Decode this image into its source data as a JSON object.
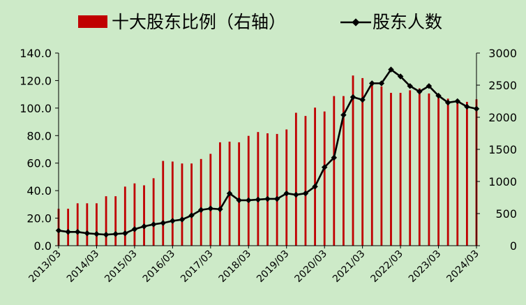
{
  "chart_data": {
    "type": "bar",
    "legend": {
      "placement": "top",
      "bar_label": "十大股东比例（右轴）",
      "line_label": "股东人数"
    },
    "x": [
      "2013/03",
      "2013/06",
      "2013/09",
      "2013/12",
      "2014/03",
      "2014/06",
      "2014/09",
      "2014/12",
      "2015/03",
      "2015/06",
      "2015/09",
      "2015/12",
      "2016/03",
      "2016/06",
      "2016/09",
      "2016/12",
      "2017/03",
      "2017/06",
      "2017/09",
      "2017/12",
      "2018/03",
      "2018/06",
      "2018/09",
      "2018/12",
      "2019/03",
      "2019/06",
      "2019/09",
      "2019/12",
      "2020/03",
      "2020/06",
      "2020/09",
      "2020/12",
      "2021/03",
      "2021/06",
      "2021/09",
      "2021/12",
      "2022/03",
      "2022/06",
      "2022/09",
      "2022/12",
      "2023/03",
      "2023/06",
      "2023/09",
      "2023/12",
      "2024/03"
    ],
    "x_tick_labels": [
      "2013/03",
      "2014/03",
      "2015/03",
      "2016/03",
      "2017/03",
      "2018/03",
      "2019/03",
      "2020/03",
      "2021/03",
      "2022/03",
      "2023/03",
      "2024/03"
    ],
    "series": [
      {
        "name": "十大股东比例（右轴）",
        "type": "bar",
        "axis": "right",
        "color": "#c00000",
        "values": [
          575,
          575,
          660,
          660,
          660,
          770,
          770,
          920,
          970,
          940,
          1050,
          1320,
          1310,
          1280,
          1280,
          1350,
          1430,
          1610,
          1620,
          1610,
          1710,
          1770,
          1750,
          1740,
          1810,
          2070,
          2020,
          2150,
          2090,
          2330,
          2330,
          2650,
          2610,
          2500,
          2480,
          2380,
          2380,
          2420,
          2450,
          2370,
          2300,
          2290,
          2250,
          2240,
          2280
        ]
      },
      {
        "name": "股东人数",
        "type": "line",
        "axis": "left",
        "color": "#000000",
        "values": [
          11,
          10,
          10,
          9,
          8.5,
          8,
          8.5,
          9,
          12,
          14,
          15.5,
          16.5,
          18,
          19,
          22,
          26,
          27,
          26.5,
          38,
          33,
          33,
          33.5,
          34,
          34,
          38,
          37,
          38,
          43,
          57,
          64,
          95,
          108,
          106,
          118,
          118,
          128,
          123,
          116,
          112,
          116,
          109,
          104,
          105,
          101,
          99.5
        ]
      }
    ],
    "left_axis": {
      "min": 0,
      "max": 140,
      "ticks": [
        "0.0",
        "20.0",
        "40.0",
        "60.0",
        "80.0",
        "100.0",
        "120.0",
        "140.0"
      ]
    },
    "right_axis": {
      "min": 0,
      "max": 3000,
      "ticks": [
        "0",
        "500",
        "1000",
        "1500",
        "2000",
        "2500",
        "3000"
      ]
    },
    "grid": false
  }
}
